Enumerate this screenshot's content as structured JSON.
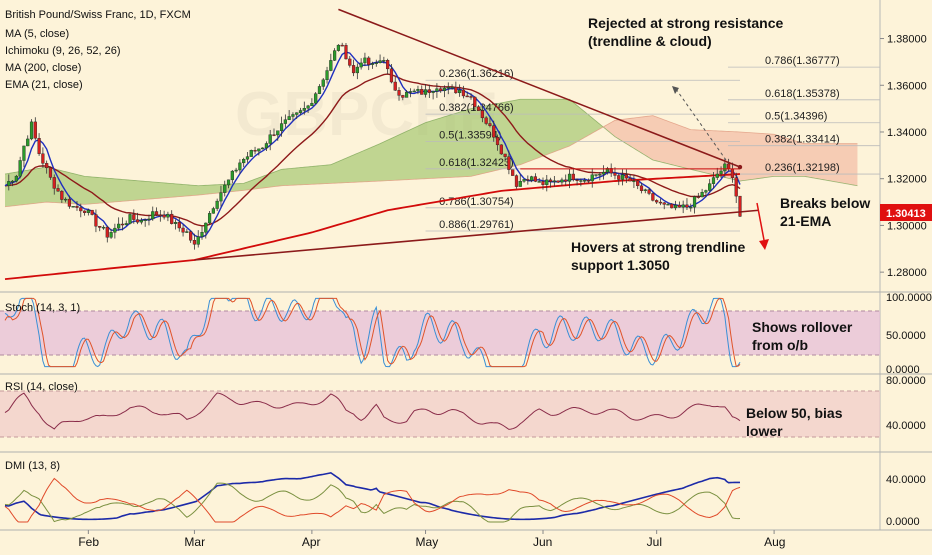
{
  "chart_data": {
    "type": "candlestick",
    "price_axis_labels": [
      "1.38000",
      "1.36000",
      "1.34000",
      "1.32000",
      "1.30000",
      "1.28000"
    ],
    "price_ticks": [
      1.38,
      1.36,
      1.34,
      1.32,
      1.3,
      1.28
    ],
    "price_range": [
      1.2715,
      1.3965
    ],
    "months": [
      {
        "label": "Feb",
        "day": 31
      },
      {
        "label": "Mar",
        "day": 59
      },
      {
        "label": "Apr",
        "day": 90
      },
      {
        "label": "May",
        "day": 120
      },
      {
        "label": "Jun",
        "day": 151
      },
      {
        "label": "Jul",
        "day": 181
      },
      {
        "label": "Aug",
        "day": 212
      }
    ],
    "day_range": [
      9,
      234
    ],
    "close_anchors": [
      [
        9,
        1.317
      ],
      [
        12,
        1.322
      ],
      [
        14,
        1.334
      ],
      [
        16,
        1.343
      ],
      [
        18,
        1.331
      ],
      [
        21,
        1.32
      ],
      [
        24,
        1.312
      ],
      [
        27,
        1.308
      ],
      [
        30,
        1.307
      ],
      [
        33,
        1.301
      ],
      [
        36,
        1.296
      ],
      [
        39,
        1.3
      ],
      [
        42,
        1.303
      ],
      [
        45,
        1.302
      ],
      [
        48,
        1.305
      ],
      [
        51,
        1.305
      ],
      [
        54,
        1.3
      ],
      [
        57,
        1.297
      ],
      [
        59,
        1.291
      ],
      [
        62,
        1.302
      ],
      [
        65,
        1.312
      ],
      [
        68,
        1.319
      ],
      [
        71,
        1.327
      ],
      [
        74,
        1.331
      ],
      [
        77,
        1.334
      ],
      [
        80,
        1.34
      ],
      [
        83,
        1.344
      ],
      [
        86,
        1.347
      ],
      [
        89,
        1.351
      ],
      [
        92,
        1.36
      ],
      [
        95,
        1.37
      ],
      [
        97,
        1.378
      ],
      [
        99,
        1.373
      ],
      [
        101,
        1.365
      ],
      [
        103,
        1.371
      ],
      [
        106,
        1.368
      ],
      [
        109,
        1.372
      ],
      [
        111,
        1.36
      ],
      [
        114,
        1.356
      ],
      [
        117,
        1.357
      ],
      [
        120,
        1.357
      ],
      [
        123,
        1.36
      ],
      [
        126,
        1.358
      ],
      [
        129,
        1.358
      ],
      [
        132,
        1.355
      ],
      [
        135,
        1.347
      ],
      [
        138,
        1.339
      ],
      [
        141,
        1.329
      ],
      [
        144,
        1.318
      ],
      [
        147,
        1.321
      ],
      [
        150,
        1.318
      ],
      [
        153,
        1.318
      ],
      [
        156,
        1.32
      ],
      [
        159,
        1.321
      ],
      [
        162,
        1.32
      ],
      [
        165,
        1.322
      ],
      [
        168,
        1.323
      ],
      [
        171,
        1.321
      ],
      [
        174,
        1.319
      ],
      [
        177,
        1.315
      ],
      [
        180,
        1.311
      ],
      [
        183,
        1.308
      ],
      [
        186,
        1.307
      ],
      [
        189,
        1.308
      ],
      [
        192,
        1.312
      ],
      [
        195,
        1.317
      ],
      [
        197,
        1.322
      ],
      [
        199,
        1.325
      ],
      [
        201,
        1.322
      ],
      [
        203,
        1.304
      ]
    ],
    "ichimoku_cloud": {
      "span_a": [
        [
          9,
          1.322
        ],
        [
          20,
          1.325
        ],
        [
          30,
          1.321
        ],
        [
          45,
          1.319
        ],
        [
          60,
          1.317
        ],
        [
          72,
          1.318
        ],
        [
          82,
          1.324
        ],
        [
          95,
          1.326
        ],
        [
          108,
          1.335
        ],
        [
          120,
          1.344
        ],
        [
          132,
          1.35
        ],
        [
          145,
          1.354
        ],
        [
          158,
          1.354
        ],
        [
          170,
          1.338
        ],
        [
          180,
          1.328
        ],
        [
          190,
          1.324
        ],
        [
          203,
          1.319
        ],
        [
          212,
          1.321
        ],
        [
          220,
          1.321
        ],
        [
          234,
          1.317
        ]
      ],
      "span_b": [
        [
          9,
          1.308
        ],
        [
          20,
          1.31
        ],
        [
          30,
          1.309
        ],
        [
          45,
          1.311
        ],
        [
          60,
          1.313
        ],
        [
          72,
          1.315
        ],
        [
          82,
          1.317
        ],
        [
          95,
          1.318
        ],
        [
          108,
          1.319
        ],
        [
          120,
          1.32
        ],
        [
          132,
          1.321
        ],
        [
          145,
          1.326
        ],
        [
          158,
          1.334
        ],
        [
          170,
          1.345
        ],
        [
          180,
          1.347
        ],
        [
          190,
          1.341
        ],
        [
          203,
          1.34
        ],
        [
          212,
          1.339
        ],
        [
          220,
          1.335
        ],
        [
          234,
          1.335
        ]
      ]
    },
    "ma200_points": [
      [
        9,
        1.277
      ],
      [
        30,
        1.2805
      ],
      [
        59,
        1.2852
      ],
      [
        90,
        1.297
      ],
      [
        110,
        1.3065
      ],
      [
        140,
        1.3148
      ],
      [
        170,
        1.319
      ],
      [
        203,
        1.322
      ]
    ],
    "trendlines": [
      {
        "kind": "resistance",
        "from": [
          97,
          1.3925
        ],
        "to": [
          203,
          1.325
        ]
      },
      {
        "kind": "support",
        "from": [
          59,
          1.2852
        ],
        "to": [
          208,
          1.3065
        ]
      }
    ],
    "fibonacci": [
      {
        "label": "0.236(1.36216)",
        "value": 1.36216
      },
      {
        "label": "0.382(1.34766)",
        "value": 1.34766
      },
      {
        "label": "0.5(1.33594)",
        "value": 1.33594
      },
      {
        "label": "0.618(1.32423)",
        "value": 1.32423
      },
      {
        "label": "0.786(1.30754)",
        "value": 1.30754
      },
      {
        "label": "0.886(1.29761)",
        "value": 1.29761
      }
    ],
    "fibonacci_right": [
      {
        "label": "0.786(1.36777)",
        "value": 1.36777
      },
      {
        "label": "0.618(1.35378)",
        "value": 1.35378
      },
      {
        "label": "0.5(1.34396)",
        "value": 1.34396
      },
      {
        "label": "0.382(1.33414)",
        "value": 1.33414
      },
      {
        "label": "0.236(1.32198)",
        "value": 1.32198
      }
    ],
    "last_price": 1.30413,
    "stoch_axis": [
      "100.0000",
      "50.0000",
      "0.0000"
    ],
    "rsi_axis": [
      "80.0000",
      "40.0000"
    ],
    "dmi_axis": [
      "40.0000",
      "0.0000"
    ]
  },
  "legend": {
    "title": "British Pound/Swiss Franc, 1D, FXCM",
    "items": [
      "MA (5, close)",
      "Ichimoku (9, 26, 52, 26)",
      "MA (200, close)",
      "EMA (21, close)"
    ]
  },
  "annotations": {
    "rejected_line1": "Rejected at strong resistance",
    "rejected_line2": "(trendline & cloud)",
    "hovers_line1": "Hovers at strong trendline",
    "hovers_line2": "support 1.3050",
    "breaks_line1": "Breaks below",
    "breaks_line2": "21-EMA",
    "stoch_line1": "Shows rollover",
    "stoch_line2": "from o/b",
    "rsi_line1": "Below 50, bias",
    "rsi_line2": "lower"
  },
  "panes": {
    "stoch_title": "Stoch (14, 3, 1)",
    "rsi_title": "RSI (14, close)",
    "dmi_title": "DMI (13, 8)"
  },
  "price_tag": "1.30413",
  "colors": {
    "background": "#fdf3d9",
    "candle_up": "#2a9a2a",
    "candle_down": "#d42020",
    "ma5": "#1f2fbf",
    "ma200": "#d20a0a",
    "ema21": "#8e1a1a",
    "trendline": "#8b1a1a",
    "cloud_bull": "#9fc46a",
    "cloud_bear": "#f2b79f",
    "rsi_line": "#8a2d4a",
    "dmi_adx": "#1c2aa8",
    "dmi_plus": "#7a9040",
    "dmi_minus": "#e04a2a",
    "stoch_k": "#3a8fd6",
    "stoch_d": "#e0542a",
    "price_tag": "#e01010"
  }
}
